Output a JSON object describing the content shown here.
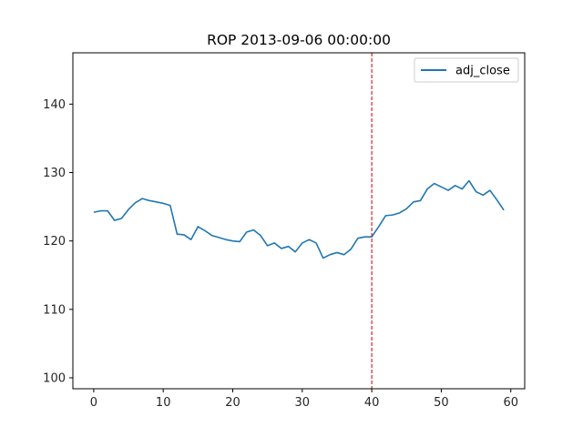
{
  "chart_data": {
    "type": "line",
    "title": "ROP 2013-09-06 00:00:00",
    "xlabel": "",
    "ylabel": "",
    "xlim": [
      -3,
      62
    ],
    "ylim": [
      98.4,
      147.5
    ],
    "xticks": [
      0,
      10,
      20,
      30,
      40,
      50,
      60
    ],
    "yticks": [
      100,
      110,
      120,
      130,
      140
    ],
    "grid": false,
    "legend": "top-right",
    "vline": {
      "x": 40,
      "color": "#d62728",
      "style": "dashed"
    },
    "series": [
      {
        "name": "adj_close",
        "color": "#1f77b4",
        "x": [
          0,
          1,
          2,
          3,
          4,
          5,
          6,
          7,
          8,
          9,
          10,
          11,
          12,
          13,
          14,
          15,
          16,
          17,
          18,
          19,
          20,
          21,
          22,
          23,
          24,
          25,
          26,
          27,
          28,
          29,
          30,
          31,
          32,
          33,
          34,
          35,
          36,
          37,
          38,
          39,
          40,
          41,
          42,
          43,
          44,
          45,
          46,
          47,
          48,
          49,
          50,
          51,
          52,
          53,
          54,
          55,
          56,
          57,
          58,
          59
        ],
        "values": [
          124.2,
          124.4,
          124.4,
          123.0,
          123.3,
          124.6,
          125.6,
          126.2,
          125.9,
          125.7,
          125.5,
          125.2,
          121.0,
          120.9,
          120.2,
          122.1,
          121.5,
          120.8,
          120.5,
          120.2,
          120.0,
          119.9,
          121.3,
          121.6,
          120.8,
          119.3,
          119.7,
          118.9,
          119.2,
          118.4,
          119.7,
          120.2,
          119.7,
          117.5,
          118.0,
          118.3,
          118.0,
          118.8,
          120.4,
          120.6,
          120.6,
          122.1,
          123.7,
          123.8,
          124.1,
          124.7,
          125.7,
          125.9,
          127.6,
          128.4,
          127.9,
          127.4,
          128.1,
          127.6,
          128.8,
          127.2,
          126.7,
          127.4,
          126.0,
          124.5
        ]
      }
    ]
  }
}
